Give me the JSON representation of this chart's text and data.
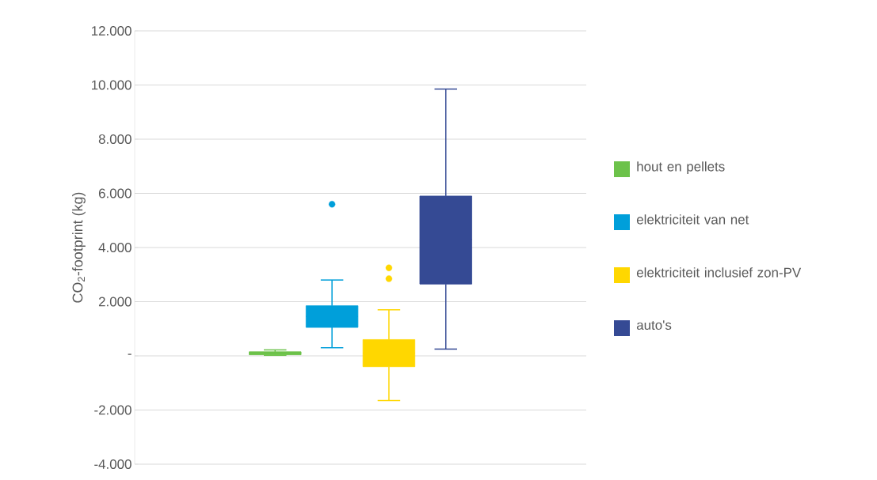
{
  "chart_data": {
    "type": "box",
    "ylabel": "CO$_{2}$-footprint (kg)",
    "categories": [
      null
    ],
    "series": [
      {
        "name": "hout en pellets",
        "color": "#6cc24a",
        "boxes": [
          {
            "low": 20,
            "q1": 40,
            "median": 100,
            "q3": 150,
            "high": 220
          }
        ]
      },
      {
        "name": "elektriciteit van net",
        "color": "#009fda",
        "boxes": [
          {
            "low": 300,
            "q1": 1050,
            "median": 1450,
            "q3": 1850,
            "high": 2800,
            "outliers": [
              5600
            ]
          }
        ]
      },
      {
        "name": "elektriciteit inclusief zon-PV",
        "color": "#ffd700",
        "boxes": [
          {
            "low": -1650,
            "q1": -400,
            "median": 100,
            "q3": 600,
            "high": 1700,
            "outliers": [
              2850,
              3250
            ]
          }
        ]
      },
      {
        "name": "auto's",
        "color": "#354a94",
        "boxes": [
          {
            "low": 250,
            "q1": 2650,
            "median": 4300,
            "q3": 5900,
            "high": 9850
          }
        ]
      }
    ],
    "ylim": [
      -4000,
      12000
    ],
    "yticks": [
      {
        "value": -4000,
        "label": "-4.000"
      },
      {
        "value": -2000,
        "label": "-2.000"
      },
      {
        "value": 0,
        "label": "-"
      },
      {
        "value": 2000,
        "label": "2.000"
      },
      {
        "value": 4000,
        "label": "4.000"
      },
      {
        "value": 6000,
        "label": "6.000"
      },
      {
        "value": 8000,
        "label": "8.000"
      },
      {
        "value": 10000,
        "label": "10.000"
      },
      {
        "value": 12000,
        "label": "12.000"
      }
    ],
    "grid": "y",
    "legend": "right"
  }
}
